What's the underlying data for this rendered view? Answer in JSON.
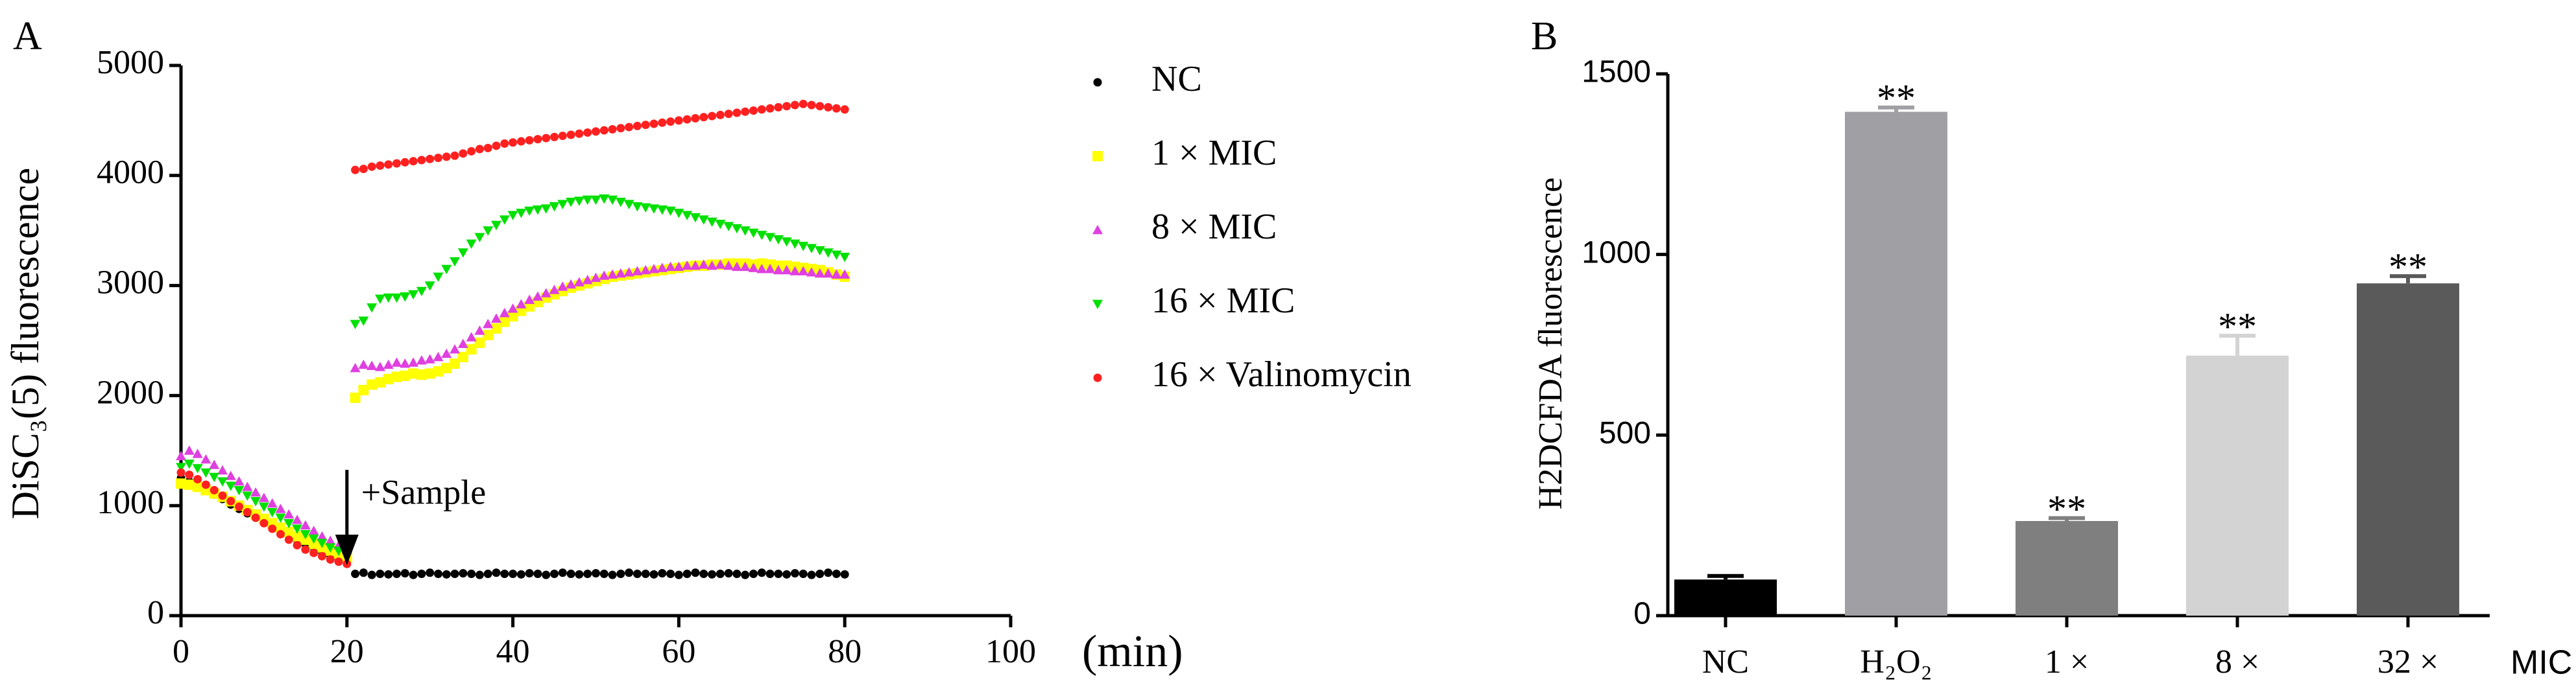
{
  "chart_data": [
    {
      "type": "scatter",
      "panel_label": "A",
      "ylabel": "DiSC₃(5) fluorescence",
      "xlabel": "(min)",
      "xlim": [
        0,
        100
      ],
      "xticks": [
        0,
        20,
        40,
        60,
        80,
        100
      ],
      "ylim": [
        0,
        5000
      ],
      "yticks": [
        0,
        1000,
        2000,
        3000,
        4000,
        5000
      ],
      "annotation": {
        "text": "+Sample",
        "x": 20
      },
      "x": [
        0,
        1,
        2,
        3,
        4,
        5,
        6,
        7,
        8,
        9,
        10,
        11,
        12,
        13,
        14,
        15,
        16,
        17,
        18,
        19,
        20,
        21,
        22,
        23,
        24,
        25,
        26,
        27,
        28,
        29,
        30,
        31,
        32,
        33,
        34,
        35,
        36,
        37,
        38,
        39,
        40,
        41,
        42,
        43,
        44,
        45,
        46,
        47,
        48,
        49,
        50,
        51,
        52,
        53,
        54,
        55,
        56,
        57,
        58,
        59,
        60,
        61,
        62,
        63,
        64,
        65,
        66,
        67,
        68,
        69,
        70,
        71,
        72,
        73,
        74,
        75,
        76,
        77,
        78,
        79,
        80
      ],
      "series": [
        {
          "name": "NC",
          "color": "#000000",
          "marker": "circle",
          "values": [
            1250,
            1220,
            1180,
            1140,
            1100,
            1060,
            1010,
            970,
            930,
            890,
            850,
            810,
            770,
            730,
            690,
            650,
            620,
            580,
            550,
            520,
            490,
            380,
            390,
            370,
            380,
            375,
            380,
            385,
            370,
            380,
            390,
            380,
            375,
            380,
            385,
            380,
            370,
            380,
            390,
            380,
            380,
            375,
            385,
            380,
            370,
            380,
            390,
            380,
            375,
            380,
            385,
            380,
            370,
            380,
            390,
            380,
            380,
            375,
            385,
            380,
            370,
            380,
            390,
            380,
            375,
            380,
            385,
            380,
            370,
            380,
            390,
            380,
            380,
            375,
            385,
            380,
            370,
            380,
            390,
            380,
            375
          ]
        },
        {
          "name": "1 × MIC",
          "color": "#ffff00",
          "marker": "square",
          "values": [
            1200,
            1190,
            1170,
            1140,
            1110,
            1080,
            1040,
            1000,
            960,
            920,
            880,
            840,
            800,
            760,
            720,
            690,
            650,
            620,
            590,
            560,
            530,
            1980,
            2050,
            2100,
            2120,
            2150,
            2170,
            2180,
            2200,
            2190,
            2200,
            2220,
            2250,
            2290,
            2350,
            2420,
            2480,
            2550,
            2610,
            2670,
            2720,
            2770,
            2810,
            2850,
            2890,
            2920,
            2950,
            2980,
            3000,
            3020,
            3040,
            3060,
            3080,
            3090,
            3100,
            3110,
            3120,
            3130,
            3140,
            3150,
            3160,
            3170,
            3180,
            3180,
            3190,
            3190,
            3200,
            3200,
            3200,
            3190,
            3200,
            3190,
            3180,
            3180,
            3170,
            3160,
            3150,
            3140,
            3120,
            3100,
            3080
          ]
        },
        {
          "name": "8 × MIC",
          "color": "#e040e0",
          "marker": "triangle",
          "values": [
            1450,
            1500,
            1470,
            1420,
            1370,
            1320,
            1270,
            1220,
            1170,
            1120,
            1070,
            1020,
            970,
            920,
            870,
            820,
            770,
            720,
            680,
            640,
            600,
            2250,
            2280,
            2270,
            2260,
            2280,
            2300,
            2290,
            2300,
            2320,
            2330,
            2350,
            2380,
            2420,
            2470,
            2530,
            2590,
            2650,
            2700,
            2750,
            2790,
            2830,
            2870,
            2900,
            2930,
            2960,
            2990,
            3010,
            3030,
            3050,
            3070,
            3090,
            3100,
            3110,
            3120,
            3130,
            3140,
            3150,
            3160,
            3170,
            3170,
            3180,
            3180,
            3190,
            3180,
            3190,
            3180,
            3170,
            3170,
            3160,
            3150,
            3150,
            3140,
            3140,
            3130,
            3130,
            3120,
            3110,
            3110,
            3100,
            3100
          ]
        },
        {
          "name": "16 × MIC",
          "color": "#00e000",
          "marker": "triangle-down",
          "values": [
            1350,
            1380,
            1340,
            1300,
            1260,
            1220,
            1180,
            1140,
            1090,
            1040,
            990,
            940,
            890,
            840,
            790,
            740,
            700,
            660,
            620,
            590,
            560,
            2650,
            2680,
            2800,
            2880,
            2890,
            2890,
            2900,
            2920,
            2950,
            3000,
            3080,
            3150,
            3220,
            3300,
            3380,
            3440,
            3500,
            3550,
            3600,
            3640,
            3660,
            3680,
            3690,
            3700,
            3720,
            3740,
            3760,
            3770,
            3780,
            3780,
            3790,
            3780,
            3760,
            3740,
            3720,
            3710,
            3700,
            3690,
            3680,
            3660,
            3640,
            3620,
            3600,
            3580,
            3560,
            3540,
            3520,
            3500,
            3480,
            3460,
            3440,
            3420,
            3400,
            3380,
            3360,
            3340,
            3320,
            3300,
            3280,
            3260
          ]
        },
        {
          "name": "16 × Valinomycin",
          "color": "#ff2020",
          "marker": "circle",
          "values": [
            1300,
            1280,
            1240,
            1190,
            1140,
            1090,
            1040,
            990,
            940,
            890,
            840,
            790,
            740,
            690,
            640,
            600,
            570,
            540,
            510,
            490,
            470,
            4050,
            4060,
            4080,
            4090,
            4100,
            4110,
            4120,
            4130,
            4140,
            4150,
            4160,
            4170,
            4180,
            4200,
            4220,
            4240,
            4250,
            4270,
            4290,
            4300,
            4310,
            4320,
            4330,
            4340,
            4350,
            4360,
            4370,
            4380,
            4390,
            4400,
            4410,
            4420,
            4430,
            4440,
            4450,
            4460,
            4470,
            4480,
            4490,
            4500,
            4510,
            4520,
            4530,
            4540,
            4550,
            4560,
            4570,
            4580,
            4590,
            4600,
            4610,
            4620,
            4630,
            4640,
            4650,
            4640,
            4630,
            4620,
            4610,
            4600
          ]
        }
      ]
    },
    {
      "type": "bar",
      "panel_label": "B",
      "ylabel": "H2DCFDA fluorescence",
      "xlabel": "MIC",
      "categories": [
        "NC",
        "H₂O₂",
        "1 ×",
        "8 ×",
        "32 ×"
      ],
      "values": [
        100,
        1395,
        262,
        720,
        920
      ],
      "errors": [
        10,
        12,
        8,
        55,
        20
      ],
      "significance": [
        null,
        "**",
        "**",
        "**",
        "**"
      ],
      "colors": [
        "#000000",
        "#a0a0a4",
        "#7f7f7f",
        "#d3d3d3",
        "#5a5a5a"
      ],
      "ylim": [
        0,
        1500
      ],
      "yticks": [
        0,
        500,
        1000,
        1500
      ]
    }
  ]
}
